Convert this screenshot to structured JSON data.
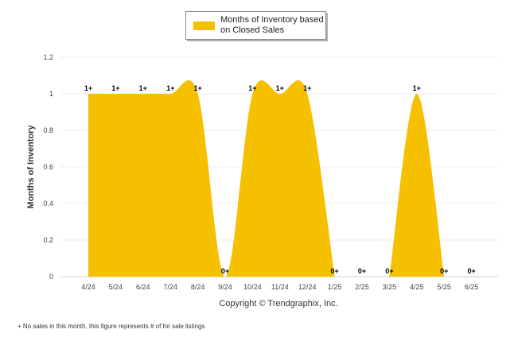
{
  "chart_data": {
    "type": "area",
    "categories": [
      "4/24",
      "5/24",
      "6/24",
      "7/24",
      "8/24",
      "9/24",
      "10/24",
      "11/24",
      "12/24",
      "1/25",
      "2/25",
      "3/25",
      "4/25",
      "5/25",
      "6/25"
    ],
    "series": [
      {
        "name": "Months of Inventory based on Closed Sales",
        "values": [
          1,
          1,
          1,
          1,
          1,
          0,
          1,
          1,
          1,
          0,
          null,
          0,
          1,
          0,
          null
        ],
        "color": "#f5c000"
      }
    ],
    "data_labels": [
      "1+",
      "1+",
      "1+",
      "1+",
      "1+",
      "0+",
      "1+",
      "1+",
      "1+",
      "0+",
      "0+",
      "0+",
      "1+",
      "0+",
      "0+"
    ],
    "ylabel": "Months of Inventory",
    "xlabel": "",
    "ylim": [
      0,
      1.2
    ],
    "yticks": [
      "0",
      "0.2",
      "0.4",
      "0.6",
      "0.8",
      "1",
      "1.2"
    ],
    "grid": true,
    "legend_position": "top-center"
  },
  "legend_label": "Months of Inventory based on Closed Sales",
  "copyright": "Copyright © Trendgraphix, Inc.",
  "footnote": "+  No sales in this month, this figure represents # of for sale listings"
}
